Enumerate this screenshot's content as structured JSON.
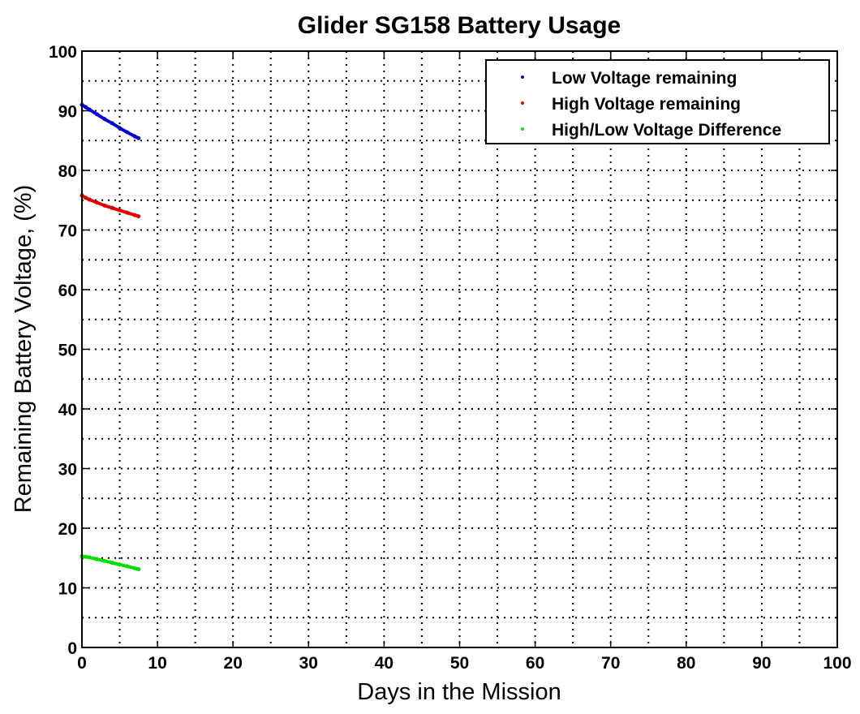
{
  "chart_data": {
    "type": "scatter",
    "title": "Glider SG158 Battery Usage",
    "xlabel": "Days in the Mission",
    "ylabel": "Remaining Battery Voltage, (%)",
    "xlim": [
      0,
      100
    ],
    "ylim": [
      0,
      100
    ],
    "xticks": [
      0,
      10,
      20,
      30,
      40,
      50,
      60,
      70,
      80,
      90,
      100
    ],
    "yticks": [
      0,
      10,
      20,
      30,
      40,
      50,
      60,
      70,
      80,
      90,
      100
    ],
    "grid": true,
    "legend_position": "top-right",
    "series": [
      {
        "name": "Low Voltage remaining",
        "color": "#0000cc",
        "x": [
          0,
          0.5,
          1,
          2,
          3,
          4,
          5,
          6,
          7,
          7.5
        ],
        "y": [
          91.0,
          90.6,
          90.2,
          89.4,
          88.6,
          87.9,
          87.1,
          86.4,
          85.7,
          85.4
        ]
      },
      {
        "name": "High Voltage remaining",
        "color": "#dd0000",
        "x": [
          0,
          0.5,
          1,
          2,
          3,
          4,
          5,
          6,
          7,
          7.5
        ],
        "y": [
          75.8,
          75.4,
          75.1,
          74.6,
          74.1,
          73.7,
          73.3,
          72.9,
          72.5,
          72.3
        ]
      },
      {
        "name": "High/Low Voltage Difference",
        "color": "#00dd00",
        "x": [
          0,
          0.5,
          1,
          2,
          3,
          4,
          5,
          6,
          7,
          7.5
        ],
        "y": [
          15.3,
          15.2,
          15.1,
          14.8,
          14.5,
          14.2,
          13.9,
          13.6,
          13.3,
          13.1
        ]
      }
    ]
  }
}
